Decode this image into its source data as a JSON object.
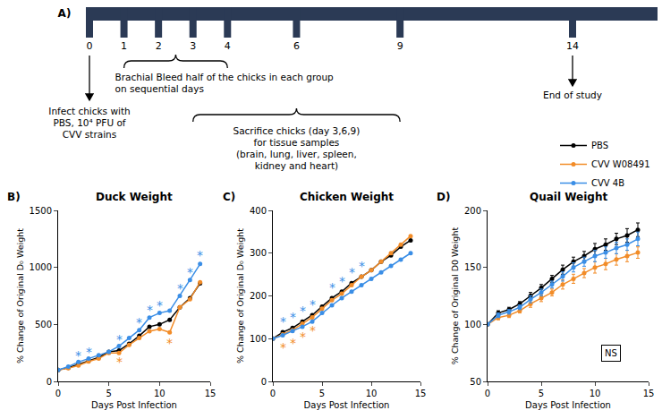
{
  "timeline": {
    "label": "A)",
    "days": [
      0,
      1,
      2,
      3,
      4,
      6,
      9,
      14
    ],
    "bleed": {
      "from": 1,
      "to": 4,
      "lines": [
        "Brachial Bleed half of the chicks in each group",
        "on sequential days"
      ]
    },
    "infect": {
      "day": 0,
      "lines": [
        "Infect chicks with",
        "PBS, 10⁴ PFU of",
        "CVV strains"
      ]
    },
    "sacrifice": {
      "from": 3,
      "to": 9,
      "lines": [
        "Sacrifice chicks (day 3,6,9)",
        "for tissue samples",
        "(brain, lung, liver, spleen,",
        "kidney and heart)"
      ]
    },
    "end": {
      "day": 14,
      "text": "End of study"
    }
  },
  "chart_data": [
    {
      "type": "line",
      "panel": "B)",
      "title": "Duck Weight",
      "x_label": "Days Post Infection",
      "y_label": "% Change of Original D₀ Weight",
      "x": [
        0,
        1,
        2,
        3,
        4,
        5,
        6,
        7,
        8,
        9,
        10,
        11,
        12,
        13,
        14
      ],
      "xlim": [
        0,
        15
      ],
      "xticks": [
        0,
        5,
        10,
        15
      ],
      "ylim": [
        0,
        1500
      ],
      "yticks": [
        0,
        500,
        1000,
        1500
      ],
      "grid": false,
      "legend": "top right",
      "series": [
        {
          "name": "PBS",
          "color": "#000000",
          "marker": "circle",
          "values": [
            100,
            120,
            150,
            180,
            210,
            260,
            270,
            330,
            400,
            480,
            500,
            540,
            650,
            730,
            860
          ]
        },
        {
          "name": "CVV W08491",
          "color": "#f28c28",
          "marker": "circle",
          "values": [
            100,
            115,
            140,
            175,
            200,
            250,
            250,
            320,
            380,
            440,
            460,
            430,
            650,
            720,
            870
          ]
        },
        {
          "name": "CVV 4B",
          "color": "#3a8ee6",
          "marker": "circle",
          "values": [
            100,
            130,
            170,
            200,
            230,
            260,
            310,
            380,
            450,
            560,
            600,
            620,
            750,
            890,
            1030
          ]
        }
      ],
      "annotations": [
        {
          "text": "*",
          "x": 2,
          "y": 230,
          "series": "CVV 4B"
        },
        {
          "text": "*",
          "x": 3,
          "y": 260,
          "series": "CVV 4B"
        },
        {
          "text": "*",
          "x": 6,
          "y": 370,
          "series": "CVV 4B"
        },
        {
          "text": "*",
          "x": 8,
          "y": 520,
          "series": "CVV 4B"
        },
        {
          "text": "*",
          "x": 9,
          "y": 630,
          "series": "CVV 4B"
        },
        {
          "text": "*",
          "x": 10,
          "y": 670,
          "series": "CVV 4B"
        },
        {
          "text": "*",
          "x": 12,
          "y": 820,
          "series": "CVV 4B"
        },
        {
          "text": "*",
          "x": 13,
          "y": 960,
          "series": "CVV 4B"
        },
        {
          "text": "*",
          "x": 14,
          "y": 1110,
          "series": "CVV 4B"
        },
        {
          "text": "*",
          "x": 6,
          "y": 170,
          "series": "CVV W08491"
        },
        {
          "text": "*",
          "x": 11,
          "y": 340,
          "series": "CVV W08491"
        }
      ]
    },
    {
      "type": "line",
      "panel": "C)",
      "title": "Chicken Weight",
      "x_label": "Days Post Infection",
      "y_label": "% Change of Original D₀ Weight",
      "x": [
        0,
        1,
        2,
        3,
        4,
        5,
        6,
        7,
        8,
        9,
        10,
        11,
        12,
        13,
        14
      ],
      "xlim": [
        0,
        15
      ],
      "xticks": [
        0,
        5,
        10,
        15
      ],
      "ylim": [
        0,
        400
      ],
      "yticks": [
        0,
        100,
        200,
        300,
        400
      ],
      "grid": false,
      "series": [
        {
          "name": "PBS",
          "color": "#000000",
          "marker": "circle",
          "values": [
            100,
            115,
            125,
            140,
            155,
            175,
            195,
            210,
            230,
            245,
            260,
            280,
            295,
            315,
            330
          ]
        },
        {
          "name": "CVV W08491",
          "color": "#f28c28",
          "marker": "circle",
          "values": [
            100,
            110,
            120,
            135,
            150,
            170,
            190,
            205,
            225,
            245,
            260,
            280,
            300,
            320,
            340
          ]
        },
        {
          "name": "CVV 4B",
          "color": "#3a8ee6",
          "marker": "circle",
          "values": [
            100,
            108,
            118,
            128,
            140,
            160,
            178,
            195,
            210,
            225,
            240,
            255,
            270,
            285,
            300
          ]
        }
      ],
      "annotations": [
        {
          "text": "*",
          "x": 1,
          "y": 140,
          "series": "CVV 4B"
        },
        {
          "text": "*",
          "x": 2,
          "y": 150,
          "series": "CVV 4B"
        },
        {
          "text": "*",
          "x": 3,
          "y": 165,
          "series": "CVV 4B"
        },
        {
          "text": "*",
          "x": 4,
          "y": 180,
          "series": "CVV 4B"
        },
        {
          "text": "*",
          "x": 6,
          "y": 220,
          "series": "CVV 4B"
        },
        {
          "text": "*",
          "x": 7,
          "y": 235,
          "series": "CVV 4B"
        },
        {
          "text": "*",
          "x": 8,
          "y": 255,
          "series": "CVV 4B"
        },
        {
          "text": "*",
          "x": 9,
          "y": 270,
          "series": "CVV 4B"
        },
        {
          "text": "*",
          "x": 1,
          "y": 80,
          "series": "CVV W08491"
        },
        {
          "text": "*",
          "x": 2,
          "y": 90,
          "series": "CVV W08491"
        },
        {
          "text": "*",
          "x": 3,
          "y": 105,
          "series": "CVV W08491"
        },
        {
          "text": "*",
          "x": 4,
          "y": 120,
          "series": "CVV W08491"
        }
      ]
    },
    {
      "type": "line",
      "panel": "D)",
      "title": "Quail Weight",
      "x_label": "Days Post Infection",
      "y_label": "% Change of Original D0 Weight",
      "x": [
        0,
        1,
        2,
        3,
        4,
        5,
        6,
        7,
        8,
        9,
        10,
        11,
        12,
        13,
        14
      ],
      "xlim": [
        0,
        15
      ],
      "xticks": [
        0,
        5,
        10,
        15
      ],
      "ylim": [
        50,
        200
      ],
      "yticks": [
        50,
        100,
        150,
        200
      ],
      "grid": false,
      "series": [
        {
          "name": "PBS",
          "color": "#000000",
          "marker": "circle",
          "values": [
            100,
            110,
            113,
            118,
            125,
            132,
            140,
            148,
            155,
            160,
            166,
            170,
            175,
            178,
            183
          ],
          "errors": [
            0,
            2,
            2,
            2,
            3,
            3,
            3,
            4,
            4,
            4,
            5,
            5,
            5,
            6,
            6
          ]
        },
        {
          "name": "CVV W08491",
          "color": "#f28c28",
          "marker": "circle",
          "values": [
            100,
            106,
            108,
            112,
            118,
            123,
            128,
            135,
            140,
            145,
            150,
            153,
            157,
            160,
            163
          ],
          "errors": [
            0,
            2,
            2,
            2,
            3,
            3,
            3,
            4,
            4,
            4,
            5,
            5,
            5,
            5,
            5
          ]
        },
        {
          "name": "CVV 4B",
          "color": "#3a8ee6",
          "marker": "circle",
          "values": [
            100,
            108,
            111,
            115,
            122,
            128,
            135,
            142,
            150,
            155,
            160,
            163,
            167,
            170,
            175
          ],
          "errors": [
            0,
            2,
            2,
            2,
            3,
            3,
            3,
            4,
            4,
            4,
            5,
            5,
            5,
            5,
            6
          ]
        }
      ],
      "annotations": [
        {
          "text": "NS",
          "x": 11.5,
          "y": 75
        }
      ]
    }
  ]
}
